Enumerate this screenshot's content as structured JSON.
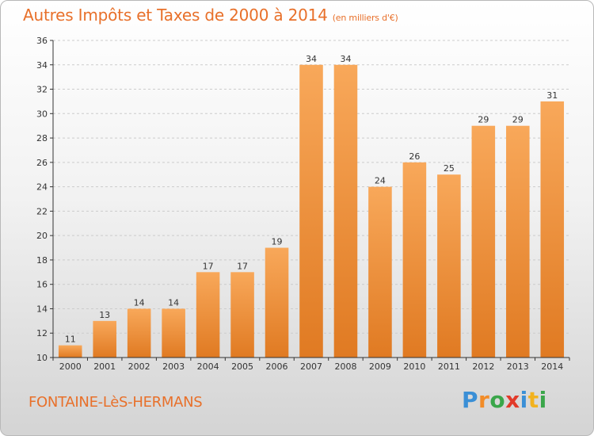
{
  "title": "Autres Impôts et Taxes de 2000 à 2014",
  "title_unit": "(en milliers d'€)",
  "commune": "FONTAINE-LèS-HERMANS",
  "logo": {
    "text": "Proxiti",
    "letters": [
      {
        "ch": "P",
        "color": "#3a8fd6"
      },
      {
        "ch": "r",
        "color": "#f28c28"
      },
      {
        "ch": "o",
        "color": "#3aa64a"
      },
      {
        "ch": "x",
        "color": "#e23a2a"
      },
      {
        "ch": "i",
        "color": "#3a8fd6"
      },
      {
        "ch": "t",
        "color": "#f2b21f"
      },
      {
        "ch": "i",
        "color": "#3aa64a"
      }
    ]
  },
  "colors": {
    "bar_light": "#f8a85a",
    "bar_dark": "#e07a22",
    "accent": "#e8702a",
    "grid": "#cccccc",
    "axis": "#333333"
  },
  "chart_data": {
    "type": "bar",
    "categories": [
      "2000",
      "2001",
      "2002",
      "2003",
      "2004",
      "2005",
      "2006",
      "2007",
      "2008",
      "2009",
      "2010",
      "2011",
      "2012",
      "2013",
      "2014"
    ],
    "values": [
      11,
      13,
      14,
      14,
      17,
      17,
      19,
      34,
      34,
      24,
      26,
      25,
      29,
      29,
      31
    ],
    "ylim": [
      10,
      36
    ],
    "yticks": [
      10,
      12,
      14,
      16,
      18,
      20,
      22,
      24,
      26,
      28,
      30,
      32,
      34,
      36
    ],
    "xlabel": "",
    "ylabel": "",
    "grid": true,
    "data_labels": true
  }
}
